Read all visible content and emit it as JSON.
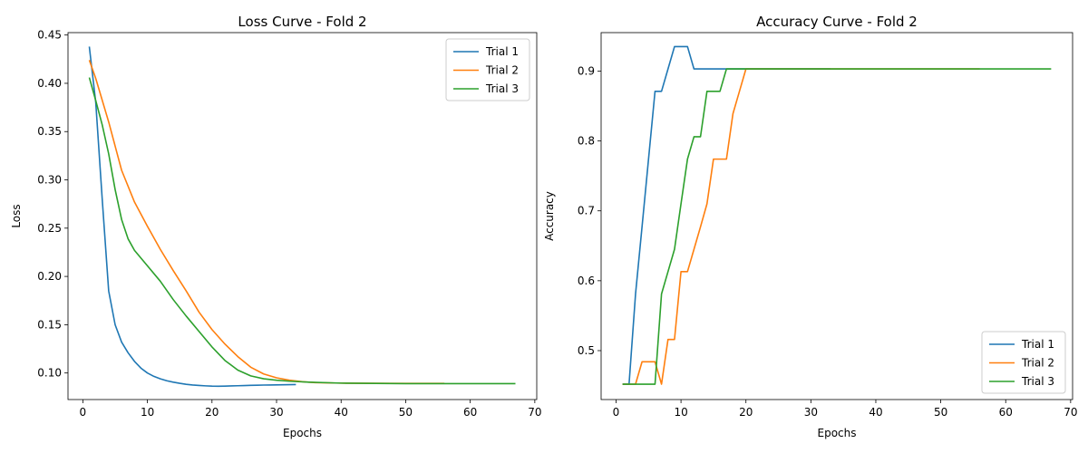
{
  "chart_data": [
    {
      "type": "line",
      "title": "Loss Curve - Fold 2",
      "xlabel": "Epochs",
      "ylabel": "Loss",
      "xlim": [
        -2.3,
        70.3
      ],
      "ylim": [
        0.0725,
        0.4525
      ],
      "xticks": [
        0,
        10,
        20,
        30,
        40,
        50,
        60,
        70
      ],
      "yticks": [
        0.1,
        0.15,
        0.2,
        0.25,
        0.3,
        0.35,
        0.4,
        0.45
      ],
      "ytick_labels": [
        "0.10",
        "0.15",
        "0.20",
        "0.25",
        "0.30",
        "0.35",
        "0.40",
        "0.45"
      ],
      "legend_position": "upper right",
      "grid": false,
      "series": [
        {
          "name": "Trial 1",
          "color": "#1f77b4",
          "x": [
            1,
            2,
            3,
            4,
            5,
            6,
            7,
            8,
            9,
            10,
            11,
            12,
            13,
            14,
            15,
            16,
            17,
            18,
            19,
            20,
            21,
            22,
            23,
            24,
            25,
            26,
            27,
            28,
            29,
            30,
            31,
            32,
            33
          ],
          "y": [
            0.438,
            0.38,
            0.28,
            0.185,
            0.15,
            0.132,
            0.121,
            0.112,
            0.105,
            0.1,
            0.0965,
            0.094,
            0.092,
            0.0905,
            0.0893,
            0.0883,
            0.0876,
            0.0871,
            0.0867,
            0.0864,
            0.0863,
            0.0864,
            0.0866,
            0.0868,
            0.087,
            0.0872,
            0.0873,
            0.0875,
            0.0876,
            0.0877,
            0.0878,
            0.0879,
            0.088
          ]
        },
        {
          "name": "Trial 2",
          "color": "#ff7f0e",
          "x": [
            1,
            2,
            4,
            6,
            8,
            10,
            12,
            14,
            16,
            18,
            20,
            22,
            24,
            26,
            28,
            30,
            32,
            34,
            36,
            40,
            45,
            50,
            56
          ],
          "y": [
            0.424,
            0.405,
            0.36,
            0.31,
            0.277,
            0.252,
            0.228,
            0.206,
            0.185,
            0.163,
            0.145,
            0.13,
            0.117,
            0.106,
            0.099,
            0.095,
            0.0925,
            0.091,
            0.09,
            0.0895,
            0.0893,
            0.0892,
            0.0892
          ]
        },
        {
          "name": "Trial 3",
          "color": "#2ca02c",
          "x": [
            1,
            2,
            3,
            4,
            5,
            6,
            7,
            8,
            10,
            12,
            14,
            16,
            18,
            20,
            22,
            24,
            26,
            28,
            30,
            32,
            35,
            40,
            50,
            60,
            67
          ],
          "y": [
            0.406,
            0.382,
            0.357,
            0.327,
            0.29,
            0.259,
            0.239,
            0.227,
            0.211,
            0.195,
            0.176,
            0.159,
            0.143,
            0.127,
            0.113,
            0.103,
            0.097,
            0.094,
            0.0925,
            0.0915,
            0.0905,
            0.0895,
            0.089,
            0.089,
            0.089
          ]
        }
      ]
    },
    {
      "type": "line",
      "title": "Accuracy Curve - Fold 2",
      "xlabel": "Epochs",
      "ylabel": "Accuracy",
      "xlim": [
        -2.3,
        70.3
      ],
      "ylim": [
        0.43,
        0.955
      ],
      "xticks": [
        0,
        10,
        20,
        30,
        40,
        50,
        60,
        70
      ],
      "yticks": [
        0.5,
        0.6,
        0.7,
        0.8,
        0.9
      ],
      "ytick_labels": [
        "0.5",
        "0.6",
        "0.7",
        "0.8",
        "0.9"
      ],
      "legend_position": "lower right",
      "grid": false,
      "series": [
        {
          "name": "Trial 1",
          "color": "#1f77b4",
          "x": [
            1,
            2,
            3,
            4,
            5,
            6,
            7,
            8,
            9,
            10,
            11,
            12,
            13,
            14,
            15,
            16,
            17,
            18,
            19,
            20,
            25,
            30,
            33
          ],
          "y": [
            0.452,
            0.452,
            0.581,
            0.677,
            0.774,
            0.871,
            0.871,
            0.903,
            0.935,
            0.935,
            0.935,
            0.903,
            0.903,
            0.903,
            0.903,
            0.903,
            0.903,
            0.903,
            0.903,
            0.903,
            0.903,
            0.903,
            0.903
          ]
        },
        {
          "name": "Trial 2",
          "color": "#ff7f0e",
          "x": [
            1,
            2,
            3,
            4,
            5,
            6,
            7,
            8,
            9,
            10,
            11,
            12,
            13,
            14,
            15,
            16,
            17,
            18,
            19,
            20,
            25,
            30,
            40,
            50,
            56
          ],
          "y": [
            0.452,
            0.452,
            0.452,
            0.484,
            0.484,
            0.484,
            0.452,
            0.516,
            0.516,
            0.613,
            0.613,
            0.645,
            0.677,
            0.71,
            0.774,
            0.774,
            0.774,
            0.839,
            0.871,
            0.903,
            0.903,
            0.903,
            0.903,
            0.903,
            0.903
          ]
        },
        {
          "name": "Trial 3",
          "color": "#2ca02c",
          "x": [
            1,
            2,
            3,
            4,
            5,
            6,
            7,
            8,
            9,
            10,
            11,
            12,
            13,
            14,
            15,
            16,
            17,
            18,
            20,
            30,
            40,
            50,
            60,
            67
          ],
          "y": [
            0.452,
            0.452,
            0.452,
            0.452,
            0.452,
            0.452,
            0.581,
            0.613,
            0.645,
            0.71,
            0.774,
            0.806,
            0.806,
            0.871,
            0.871,
            0.871,
            0.903,
            0.903,
            0.903,
            0.903,
            0.903,
            0.903,
            0.903,
            0.903
          ]
        }
      ]
    }
  ]
}
